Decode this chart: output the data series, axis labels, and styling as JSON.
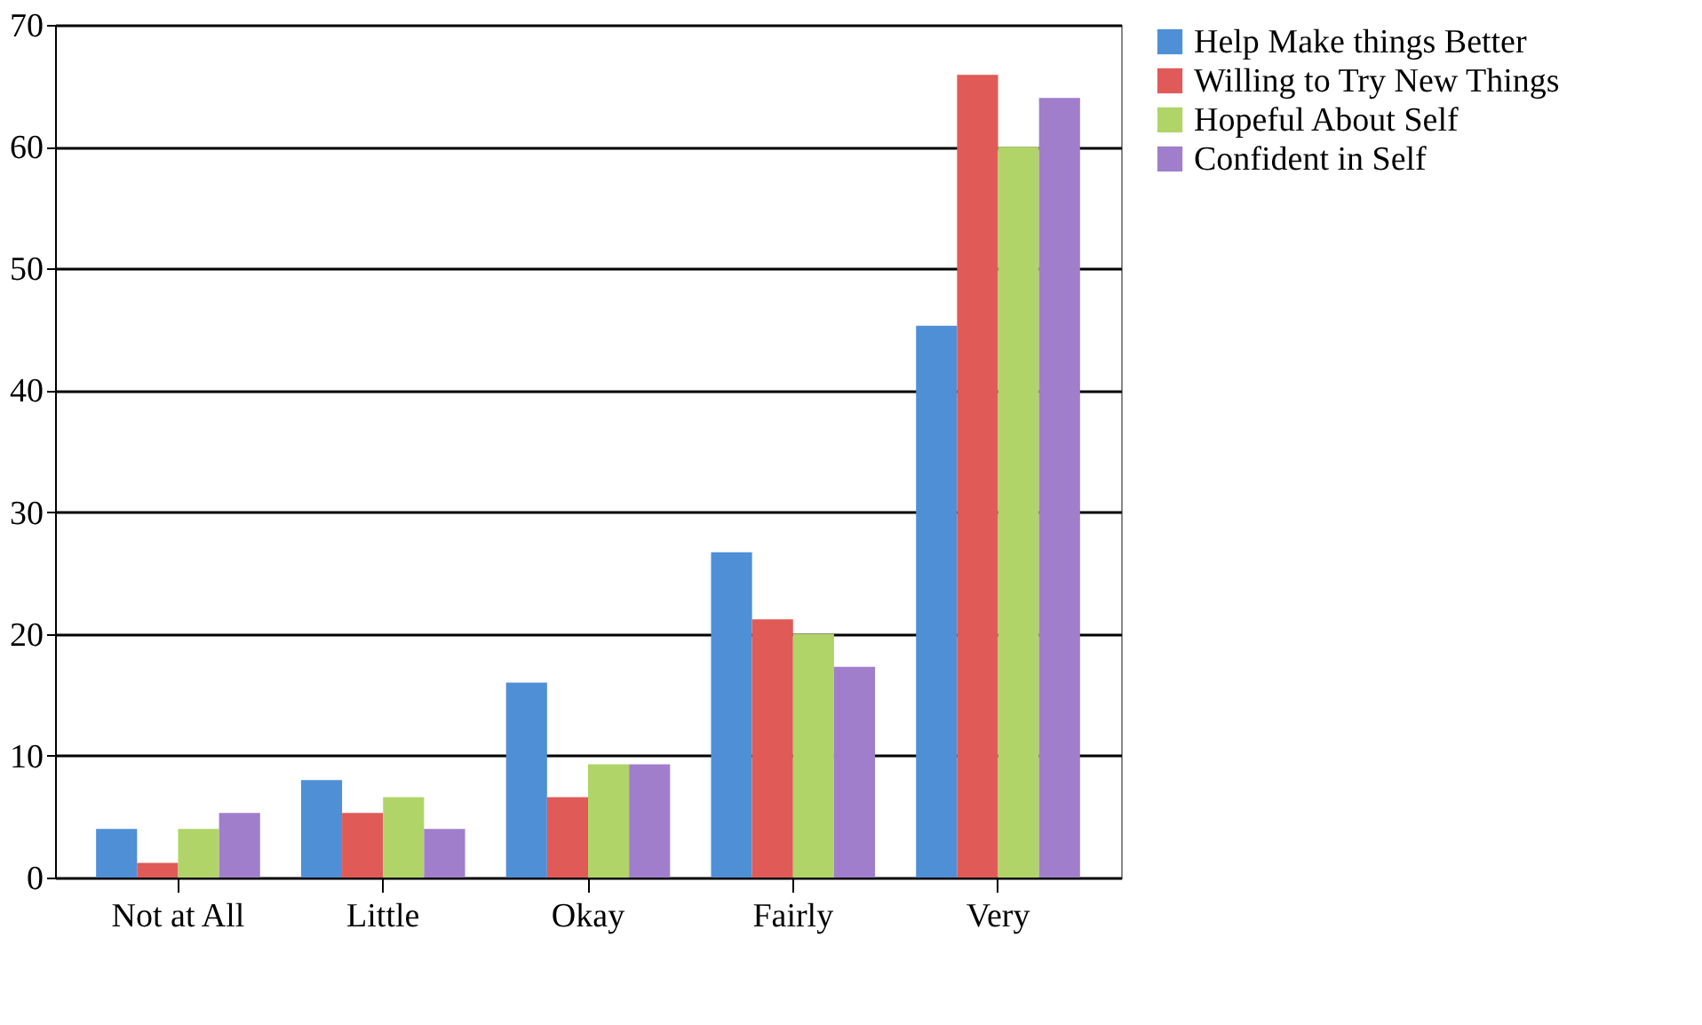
{
  "chart_data": {
    "type": "bar",
    "categories": [
      "Not at All",
      "Little",
      "Okay",
      "Fairly",
      "Very"
    ],
    "series": [
      {
        "name": "Help Make things Better",
        "color": "#4f8fd6",
        "values": [
          4,
          8,
          16,
          26.7,
          45.3
        ]
      },
      {
        "name": "Willing to Try New Things",
        "color": "#e05a58",
        "values": [
          1.2,
          5.3,
          6.6,
          21.2,
          65.9
        ]
      },
      {
        "name": "Hopeful About Self",
        "color": "#b0d468",
        "values": [
          4,
          6.6,
          9.3,
          20,
          60
        ]
      },
      {
        "name": "Confident in Self",
        "color": "#a07ecb",
        "values": [
          5.3,
          4,
          9.3,
          17.3,
          64
        ]
      }
    ],
    "ylim": [
      0,
      70
    ],
    "yticks": [
      0,
      10,
      20,
      30,
      40,
      50,
      60,
      70
    ],
    "grid": "y",
    "legend": "right"
  }
}
